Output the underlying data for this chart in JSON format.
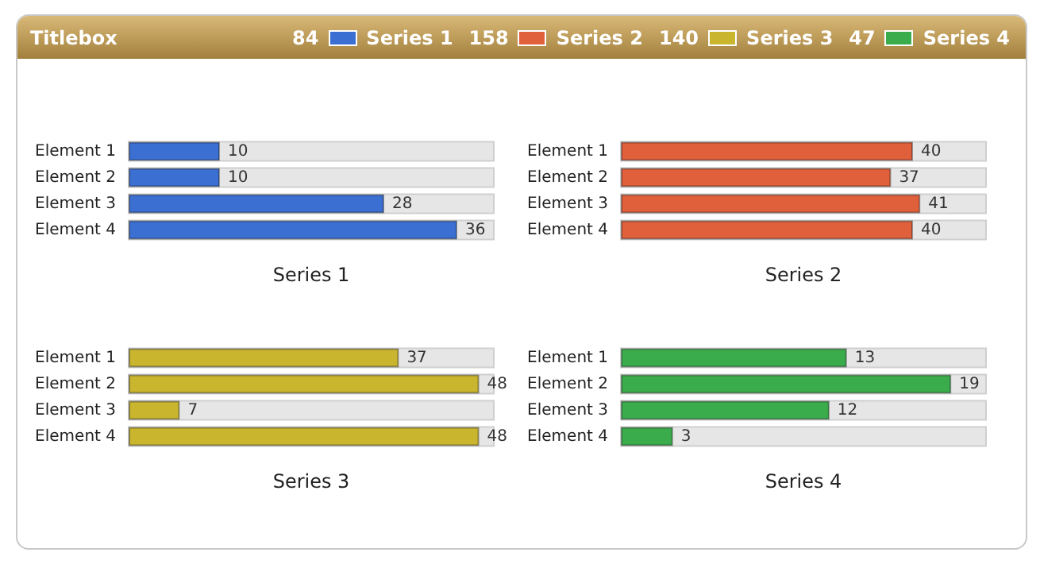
{
  "chart_data": [
    {
      "type": "bar",
      "title": "Titlebox",
      "xlabel": "Series 1",
      "orientation": "horizontal",
      "categories": [
        "Element 1",
        "Element 2",
        "Element 3",
        "Element 4"
      ],
      "series": [
        {
          "name": "Series 1",
          "color": "#3b6fd2",
          "values": [
            10,
            10,
            28,
            36
          ]
        }
      ],
      "tick_labels": "y",
      "data_labels": true,
      "legend": "top",
      "annotations": [
        "84"
      ]
    },
    {
      "type": "bar",
      "xlabel": "Series 2",
      "orientation": "horizontal",
      "categories": [
        "Element 1",
        "Element 2",
        "Element 3",
        "Element 4"
      ],
      "series": [
        {
          "name": "Series 2",
          "color": "#e0603c",
          "values": [
            40,
            37,
            41,
            40
          ]
        }
      ],
      "tick_labels": "y",
      "data_labels": true,
      "legend": "top",
      "annotations": [
        "158"
      ]
    },
    {
      "type": "bar",
      "xlabel": "Series 3",
      "orientation": "horizontal",
      "categories": [
        "Element 1",
        "Element 2",
        "Element 3",
        "Element 4"
      ],
      "series": [
        {
          "name": "Series 3",
          "color": "#c9b52e",
          "values": [
            37,
            48,
            7,
            48
          ]
        }
      ],
      "tick_labels": "y",
      "data_labels": true,
      "legend": "top",
      "annotations": [
        "140"
      ]
    },
    {
      "type": "bar",
      "xlabel": "Series 4",
      "orientation": "horizontal",
      "categories": [
        "Element 1",
        "Element 2",
        "Element 3",
        "Element 4"
      ],
      "series": [
        {
          "name": "Series 4",
          "color": "#3aac4c",
          "values": [
            13,
            19,
            12,
            3
          ]
        }
      ],
      "tick_labels": "y",
      "data_labels": true,
      "legend": "top",
      "annotations": [
        "47"
      ]
    }
  ]
}
